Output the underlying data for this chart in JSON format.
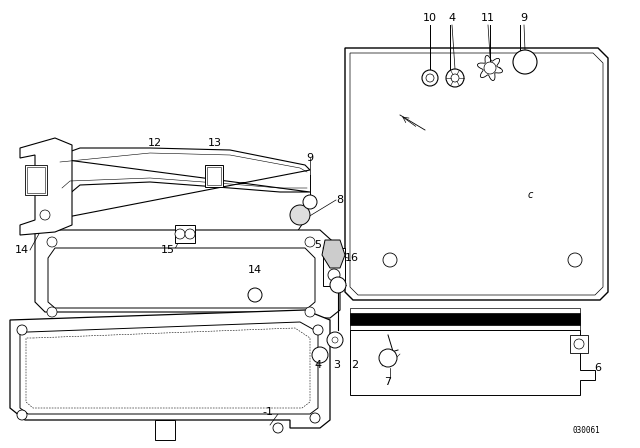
{
  "bg_color": "#ffffff",
  "line_color": "#000000",
  "fig_width": 6.4,
  "fig_height": 4.48,
  "dpi": 100,
  "diagram_code": "030061"
}
